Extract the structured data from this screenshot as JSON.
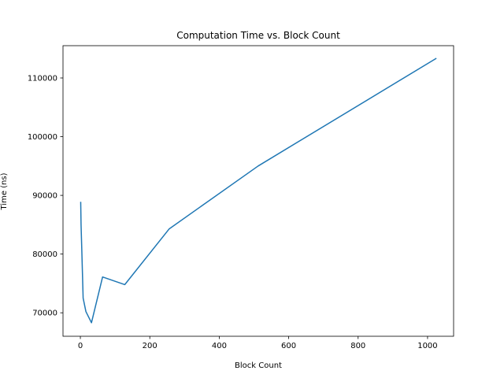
{
  "chart_data": {
    "type": "line",
    "title": "Computation Time vs. Block Count",
    "xlabel": "Block Count",
    "ylabel": "Time (ns)",
    "xlim": [
      -50,
      1075
    ],
    "ylim": [
      66000,
      115500
    ],
    "xticks": [
      0,
      200,
      400,
      600,
      800,
      1000
    ],
    "xtick_labels": [
      "0",
      "200",
      "400",
      "600",
      "800",
      "1000"
    ],
    "yticks": [
      70000,
      80000,
      90000,
      100000,
      110000
    ],
    "ytick_labels": [
      "70000",
      "80000",
      "90000",
      "100000",
      "110000"
    ],
    "grid": false,
    "series": [
      {
        "color": "#1f77b4",
        "x": [
          1,
          2,
          4,
          8,
          16,
          32,
          64,
          128,
          256,
          512,
          1024
        ],
        "y": [
          88800,
          85000,
          81000,
          72500,
          70200,
          68300,
          76100,
          74800,
          84300,
          95000,
          113300
        ]
      }
    ]
  }
}
